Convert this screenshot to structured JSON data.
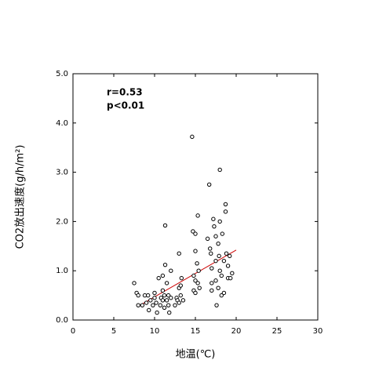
{
  "chart_data": {
    "type": "scatter",
    "x_label": "地温(℃)",
    "y_label": "CO2放出速度(g/h/m²)",
    "annotations": [
      "r=0.53",
      "p<0.01"
    ],
    "xlim": [
      0,
      30
    ],
    "xticks": [
      0,
      5,
      10,
      15,
      20,
      25,
      30
    ],
    "ylim": [
      0,
      5
    ],
    "yticks": [
      {
        "value": 0,
        "label": "0.0"
      },
      {
        "value": 1,
        "label": "1.0"
      },
      {
        "value": 2,
        "label": "2.0"
      },
      {
        "value": 3,
        "label": "3.0"
      },
      {
        "value": 4,
        "label": "4.0"
      },
      {
        "value": 5,
        "label": "5.0"
      }
    ],
    "color": "#000000",
    "trendline": {
      "color": "#cc0000",
      "x": [
        8,
        20
      ],
      "y": [
        0.28,
        1.42
      ]
    },
    "series": [
      {
        "x": [
          7.5,
          7.8,
          8,
          8,
          8.5,
          8.8,
          9,
          9.2,
          9.3,
          9.5,
          9.8,
          10,
          10,
          10.2,
          10.3,
          10.5,
          10.7,
          10.8,
          11,
          11,
          11,
          11.2,
          11.2,
          11.3,
          11.3,
          11.5,
          11.5,
          11.7,
          11.7,
          11.8,
          12,
          12,
          12.5,
          12.7,
          12.8,
          13,
          13,
          13,
          13.2,
          13.2,
          13.3,
          13.5,
          14.6,
          14.7,
          14.8,
          14.8,
          15,
          15,
          15,
          15,
          15.2,
          15.3,
          15.3,
          15.4,
          15.5,
          16.5,
          16.7,
          16.8,
          16.9,
          17,
          17,
          17,
          17.2,
          17.3,
          17.5,
          17.5,
          17.5,
          17.6,
          17.8,
          17.8,
          17.9,
          18,
          18,
          18,
          18.2,
          18.2,
          18.3,
          18.5,
          18.5,
          18.7,
          18.7,
          18.8,
          19,
          19,
          19.2,
          19.3,
          19.5
        ],
        "values": [
          0.75,
          0.55,
          0.5,
          0.3,
          0.3,
          0.5,
          0.35,
          0.5,
          0.2,
          0.4,
          0.3,
          0.45,
          0.55,
          0.35,
          0.15,
          0.85,
          0.3,
          0.45,
          0.9,
          0.6,
          0.4,
          0.25,
          0.5,
          1.12,
          1.92,
          0.75,
          0.4,
          0.3,
          0.5,
          0.15,
          1.0,
          0.45,
          0.3,
          0.45,
          0.4,
          0.35,
          1.35,
          0.65,
          0.5,
          0.7,
          0.85,
          0.4,
          3.72,
          1.8,
          0.6,
          0.9,
          1.75,
          1.4,
          0.8,
          0.55,
          1.15,
          2.12,
          0.75,
          1.0,
          0.65,
          1.65,
          2.75,
          1.45,
          1.35,
          0.6,
          1.05,
          0.75,
          2.05,
          1.9,
          1.7,
          1.2,
          0.8,
          0.3,
          1.55,
          0.65,
          1.3,
          2.0,
          3.05,
          1.0,
          0.9,
          0.5,
          1.75,
          1.2,
          0.55,
          2.35,
          2.2,
          1.35,
          0.85,
          1.1,
          1.3,
          0.85,
          0.95
        ]
      }
    ]
  }
}
